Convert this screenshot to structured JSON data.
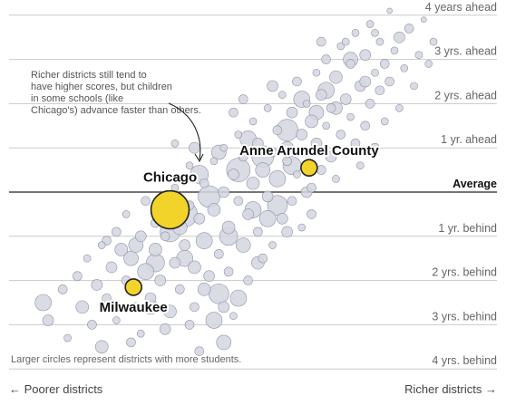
{
  "chart_data": {
    "type": "scatter",
    "title": "",
    "xlabel": "",
    "ylabel": "",
    "x_axis": {
      "left_label": "← Poorer districts",
      "right_label": "Richer districts →",
      "xlim": [
        0,
        100
      ]
    },
    "y_axis": {
      "unit": "grade levels relative to average",
      "ylim": [
        -4.2,
        4.2
      ],
      "ticks": [
        {
          "value": 4,
          "label": "4 years ahead"
        },
        {
          "value": 3,
          "label": "3 yrs. ahead"
        },
        {
          "value": 2,
          "label": "2 yrs. ahead"
        },
        {
          "value": 1,
          "label": "1 yr. ahead"
        },
        {
          "value": 0,
          "label": "Average"
        },
        {
          "value": -1,
          "label": "1 yr. behind"
        },
        {
          "value": -2,
          "label": "2 yrs. behind"
        },
        {
          "value": -3,
          "label": "3 yrs. behind"
        },
        {
          "value": -4,
          "label": "4 yrs. behind"
        }
      ]
    },
    "highlighted": [
      {
        "name": "Chicago",
        "x": 33,
        "y": -0.4,
        "size": 21
      },
      {
        "name": "Anne Arundel County",
        "x": 61.5,
        "y": 0.55,
        "size": 9
      },
      {
        "name": "Milwaukee",
        "x": 25.5,
        "y": -2.15,
        "size": 9
      }
    ],
    "annotation": "Richer districts still tend to have higher scores, but children in some schools (like Chicago's) advance faster than others.",
    "size_note": "Larger circles represent districts with more students.",
    "grid": true,
    "colors": {
      "bubble_fill": "#d3d6e0",
      "bubble_stroke": "#8e93a3",
      "highlight_fill": "#f2d32a",
      "grid": "#c9c9c9",
      "average_line": "#222222"
    },
    "series": [
      {
        "values": [
          [
            7,
            -2.5,
            9
          ],
          [
            8,
            -2.9,
            6
          ],
          [
            11,
            -2.2,
            5
          ],
          [
            12,
            -3.3,
            4
          ],
          [
            14,
            -1.9,
            5
          ],
          [
            15,
            -2.6,
            7
          ],
          [
            16,
            -1.5,
            4
          ],
          [
            17,
            -3.0,
            5
          ],
          [
            18,
            -2.1,
            6
          ],
          [
            19,
            -1.2,
            4
          ],
          [
            19,
            -3.5,
            7
          ],
          [
            20,
            -2.4,
            5
          ],
          [
            21,
            -1.7,
            6
          ],
          [
            22,
            -0.9,
            5
          ],
          [
            22,
            -2.9,
            4
          ],
          [
            23,
            -1.3,
            7
          ],
          [
            24,
            -2.0,
            5
          ],
          [
            24,
            -0.5,
            4
          ],
          [
            25,
            -1.5,
            8
          ],
          [
            26,
            -2.6,
            5
          ],
          [
            27,
            -1.0,
            6
          ],
          [
            27,
            -3.2,
            4
          ],
          [
            28,
            -0.2,
            5
          ],
          [
            28,
            -1.8,
            9
          ],
          [
            29,
            -2.4,
            6
          ],
          [
            30,
            -0.7,
            5
          ],
          [
            30,
            -1.3,
            7
          ],
          [
            31,
            0.3,
            4
          ],
          [
            31,
            -2.0,
            6
          ],
          [
            32,
            -1.0,
            5
          ],
          [
            33,
            -2.7,
            7
          ],
          [
            34,
            -1.6,
            6
          ],
          [
            34,
            0.1,
            4
          ],
          [
            35,
            -0.8,
            8
          ],
          [
            35,
            -2.2,
            5
          ],
          [
            36,
            -1.2,
            6
          ],
          [
            37,
            0.6,
            4
          ],
          [
            37,
            -0.3,
            5
          ],
          [
            38,
            -1.7,
            7
          ],
          [
            38,
            -2.6,
            5
          ],
          [
            39,
            -0.6,
            6
          ],
          [
            40,
            0.2,
            5
          ],
          [
            40,
            -1.1,
            9
          ],
          [
            41,
            -1.9,
            6
          ],
          [
            42,
            0.7,
            4
          ],
          [
            42,
            -0.4,
            7
          ],
          [
            43,
            -2.3,
            11
          ],
          [
            43,
            -1.4,
            5
          ],
          [
            44,
            0.0,
            6
          ],
          [
            44,
            1.0,
            4
          ],
          [
            45,
            -0.8,
            7
          ],
          [
            45,
            -1.8,
            5
          ],
          [
            46,
            0.4,
            6
          ],
          [
            46,
            -2.8,
            4
          ],
          [
            47,
            -0.2,
            5
          ],
          [
            47,
            1.3,
            4
          ],
          [
            48,
            -1.2,
            8
          ],
          [
            48,
            0.8,
            5
          ],
          [
            49,
            -0.5,
            6
          ],
          [
            49,
            -2.0,
            5
          ],
          [
            50,
            0.2,
            7
          ],
          [
            50,
            1.6,
            4
          ],
          [
            51,
            -0.9,
            5
          ],
          [
            51,
            1.1,
            6
          ],
          [
            52,
            -1.5,
            5
          ],
          [
            52,
            0.5,
            8
          ],
          [
            53,
            -0.1,
            6
          ],
          [
            53,
            1.9,
            4
          ],
          [
            54,
            0.9,
            5
          ],
          [
            54,
            -1.2,
            4
          ],
          [
            55,
            0.3,
            9
          ],
          [
            55,
            1.4,
            5
          ],
          [
            56,
            -0.6,
            6
          ],
          [
            56,
            2.2,
            4
          ],
          [
            57,
            0.7,
            5
          ],
          [
            57,
            1.0,
            7
          ],
          [
            58,
            -0.2,
            5
          ],
          [
            58,
            1.8,
            6
          ],
          [
            59,
            0.4,
            4
          ],
          [
            59,
            2.5,
            5
          ],
          [
            60,
            1.3,
            6
          ],
          [
            60,
            -0.8,
            4
          ],
          [
            61,
            0.9,
            5
          ],
          [
            61,
            2.0,
            4
          ],
          [
            62,
            1.6,
            7
          ],
          [
            62,
            0.1,
            5
          ],
          [
            63,
            2.7,
            4
          ],
          [
            63,
            1.1,
            6
          ],
          [
            64,
            0.5,
            5
          ],
          [
            64,
            2.2,
            6
          ],
          [
            65,
            1.5,
            4
          ],
          [
            65,
            3.0,
            5
          ],
          [
            66,
            0.8,
            6
          ],
          [
            66,
            1.9,
            5
          ],
          [
            67,
            2.6,
            7
          ],
          [
            67,
            0.3,
            4
          ],
          [
            68,
            1.3,
            5
          ],
          [
            68,
            3.3,
            4
          ],
          [
            69,
            2.1,
            6
          ],
          [
            69,
            0.9,
            5
          ],
          [
            70,
            1.7,
            4
          ],
          [
            70,
            2.9,
            5
          ],
          [
            71,
            1.1,
            5
          ],
          [
            71,
            3.6,
            4
          ],
          [
            72,
            2.4,
            6
          ],
          [
            72,
            0.6,
            4
          ],
          [
            73,
            1.5,
            5
          ],
          [
            73,
            3.1,
            6
          ],
          [
            74,
            2.0,
            5
          ],
          [
            74,
            3.8,
            4
          ],
          [
            75,
            2.7,
            4
          ],
          [
            75,
            1.0,
            5
          ],
          [
            76,
            2.3,
            5
          ],
          [
            76,
            3.4,
            4
          ],
          [
            77,
            1.6,
            4
          ],
          [
            77,
            2.9,
            5
          ],
          [
            78,
            4.1,
            3
          ],
          [
            78,
            2.5,
            5
          ],
          [
            79,
            3.2,
            4
          ],
          [
            80,
            1.9,
            4
          ],
          [
            80,
            3.5,
            6
          ],
          [
            81,
            2.8,
            4
          ],
          [
            82,
            3.7,
            5
          ],
          [
            83,
            2.4,
            4
          ],
          [
            84,
            3.1,
            4
          ],
          [
            85,
            3.9,
            3
          ],
          [
            86,
            2.9,
            4
          ],
          [
            87,
            3.4,
            4
          ],
          [
            36,
            -0.5,
            14
          ],
          [
            41,
            -0.1,
            12
          ],
          [
            47,
            0.5,
            13
          ],
          [
            52,
            0.8,
            12
          ],
          [
            57,
            1.4,
            12
          ],
          [
            45,
            -1.0,
            10
          ],
          [
            55,
            -0.3,
            11
          ],
          [
            39,
            0.4,
            10
          ],
          [
            49,
            1.2,
            9
          ],
          [
            60,
            2.1,
            9
          ],
          [
            65,
            2.3,
            9
          ],
          [
            42,
            -2.9,
            9
          ],
          [
            70,
            3.0,
            8
          ],
          [
            30,
            -1.6,
            10
          ],
          [
            33,
            -0.9,
            11
          ],
          [
            26,
            -1.2,
            8
          ],
          [
            50,
            -0.4,
            9
          ],
          [
            58,
            0.6,
            10
          ],
          [
            63,
            1.8,
            8
          ],
          [
            44,
            -3.4,
            8
          ],
          [
            47,
            -2.4,
            9
          ],
          [
            38,
            1.0,
            6
          ],
          [
            32,
            -3.1,
            6
          ],
          [
            53,
            -0.6,
            9
          ],
          [
            67,
            1.9,
            7
          ],
          [
            73,
            2.5,
            6
          ],
          [
            43,
            0.9,
            8
          ],
          [
            36,
            -1.5,
            9
          ],
          [
            29,
            -2.6,
            8
          ],
          [
            61,
            0.0,
            6
          ],
          [
            54,
            2.4,
            6
          ],
          [
            37,
            -3.0,
            5
          ],
          [
            48,
            2.1,
            5
          ],
          [
            51,
            -1.6,
            7
          ],
          [
            64,
            3.4,
            5
          ],
          [
            57,
            -0.9,
            6
          ],
          [
            40,
            -2.2,
            7
          ],
          [
            46,
            1.8,
            5
          ],
          [
            25,
            -3.4,
            5
          ],
          [
            20,
            -1.1,
            5
          ],
          [
            34,
            1.1,
            4
          ],
          [
            62,
            -0.5,
            5
          ],
          [
            69,
            3.4,
            4
          ],
          [
            75,
            3.6,
            4
          ],
          [
            44,
            -2.6,
            6
          ],
          [
            39,
            -3.6,
            5
          ],
          [
            31,
            -0.3,
            6
          ]
        ]
      }
    ]
  }
}
